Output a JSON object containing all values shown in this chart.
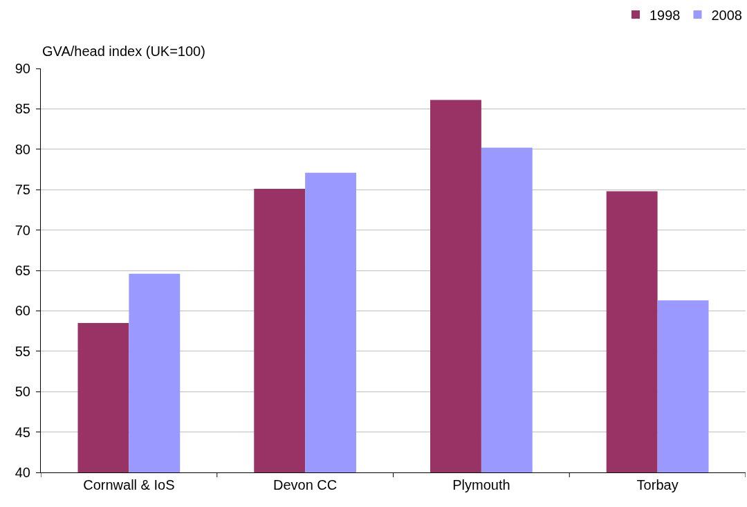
{
  "chart_data": {
    "type": "bar",
    "ylabel": "GVA/head index (UK=100)",
    "categories": [
      "Cornwall & IoS",
      "Devon CC",
      "Plymouth",
      "Torbay"
    ],
    "series": [
      {
        "name": "1998",
        "color": "#993366",
        "values": [
          58.5,
          75.1,
          86.1,
          74.8
        ]
      },
      {
        "name": "2008",
        "color": "#9999ff",
        "values": [
          64.6,
          77.1,
          80.2,
          61.3
        ]
      }
    ],
    "ylim": [
      40,
      90
    ],
    "yticks": [
      40,
      45,
      50,
      55,
      60,
      65,
      70,
      75,
      80,
      85,
      90
    ],
    "grid": "y",
    "legend": "top right"
  }
}
